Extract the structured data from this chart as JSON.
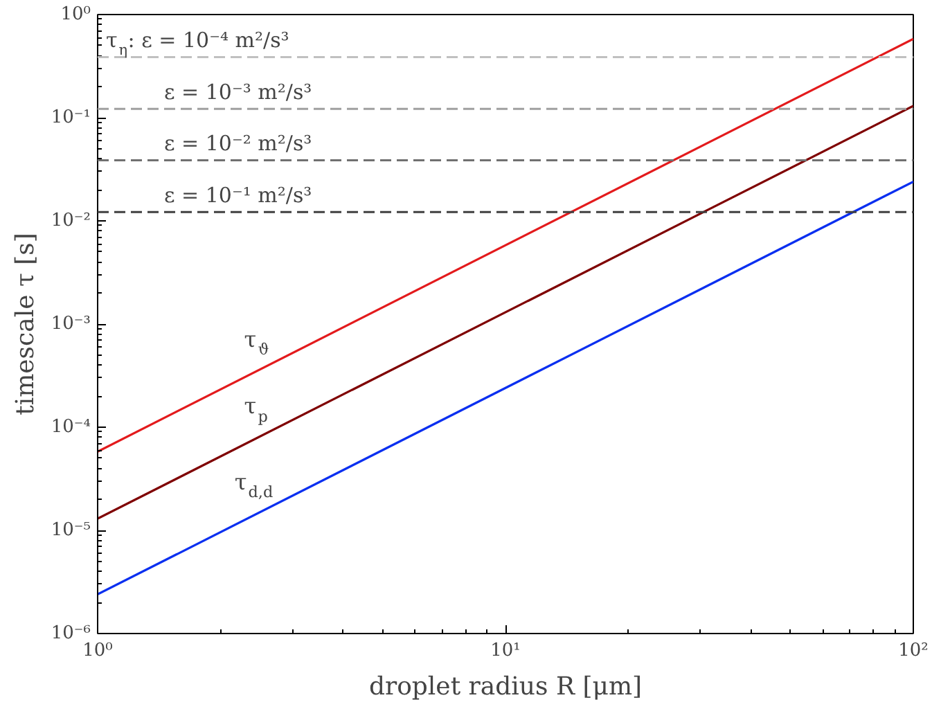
{
  "chart_data": {
    "type": "line",
    "log": "xy",
    "xlabel": "droplet radius R [μm]",
    "ylabel": "timescale τ [s]",
    "x": [
      1,
      100
    ],
    "series": [
      {
        "name": "τ$_{ϑ}$",
        "color": "#e31a1c",
        "values": [
          5.8e-05,
          0.58
        ]
      },
      {
        "name": "τ$_{p}$",
        "color": "#7f0000",
        "values": [
          1.3e-05,
          0.13
        ]
      },
      {
        "name": "τ$_{d,d}$",
        "color": "#0a2ff0",
        "values": [
          2.4e-06,
          0.024
        ]
      }
    ],
    "xlim": [
      1,
      100
    ],
    "ylim": [
      1e-06,
      1
    ],
    "xticks": [
      {
        "value": 1,
        "label": "10⁰"
      },
      {
        "value": 10,
        "label": "10¹"
      },
      {
        "value": 100,
        "label": "10²"
      }
    ],
    "yticks": [
      {
        "value": 1e-06,
        "label": "10⁻⁶"
      },
      {
        "value": 1e-05,
        "label": "10⁻⁵"
      },
      {
        "value": 0.0001,
        "label": "10⁻⁴"
      },
      {
        "value": 0.001,
        "label": "10⁻³"
      },
      {
        "value": 0.01,
        "label": "10⁻²"
      },
      {
        "value": 0.1,
        "label": "10⁻¹"
      },
      {
        "value": 1,
        "label": "10⁰"
      }
    ],
    "ref_lines": [
      {
        "axis": "y",
        "value": 0.387,
        "color": "#c0c0c0",
        "line_style": "dashed"
      },
      {
        "axis": "y",
        "value": 0.122,
        "color": "#a0a0a0",
        "line_style": "dashed"
      },
      {
        "axis": "y",
        "value": 0.0387,
        "color": "#707070",
        "line_style": "dashed"
      },
      {
        "axis": "y",
        "value": 0.0122,
        "color": "#404040",
        "line_style": "dashed"
      }
    ],
    "annotations": [
      "τ$_{η}$: ε = 10⁻⁴ m²/s³",
      "ε = 10⁻³ m²/s³",
      "ε = 10⁻² m²/s³",
      "ε = 10⁻¹ m²/s³"
    ],
    "grid": false
  }
}
